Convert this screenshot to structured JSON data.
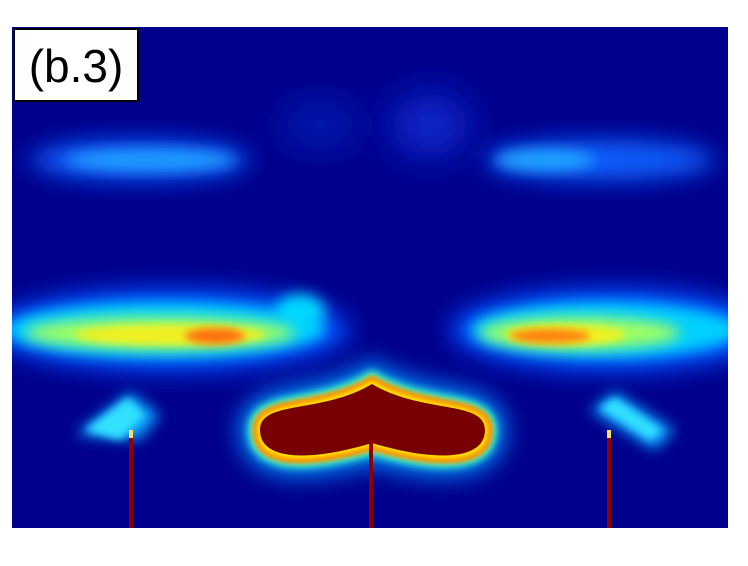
{
  "panel_label": "(b.3)"
}
